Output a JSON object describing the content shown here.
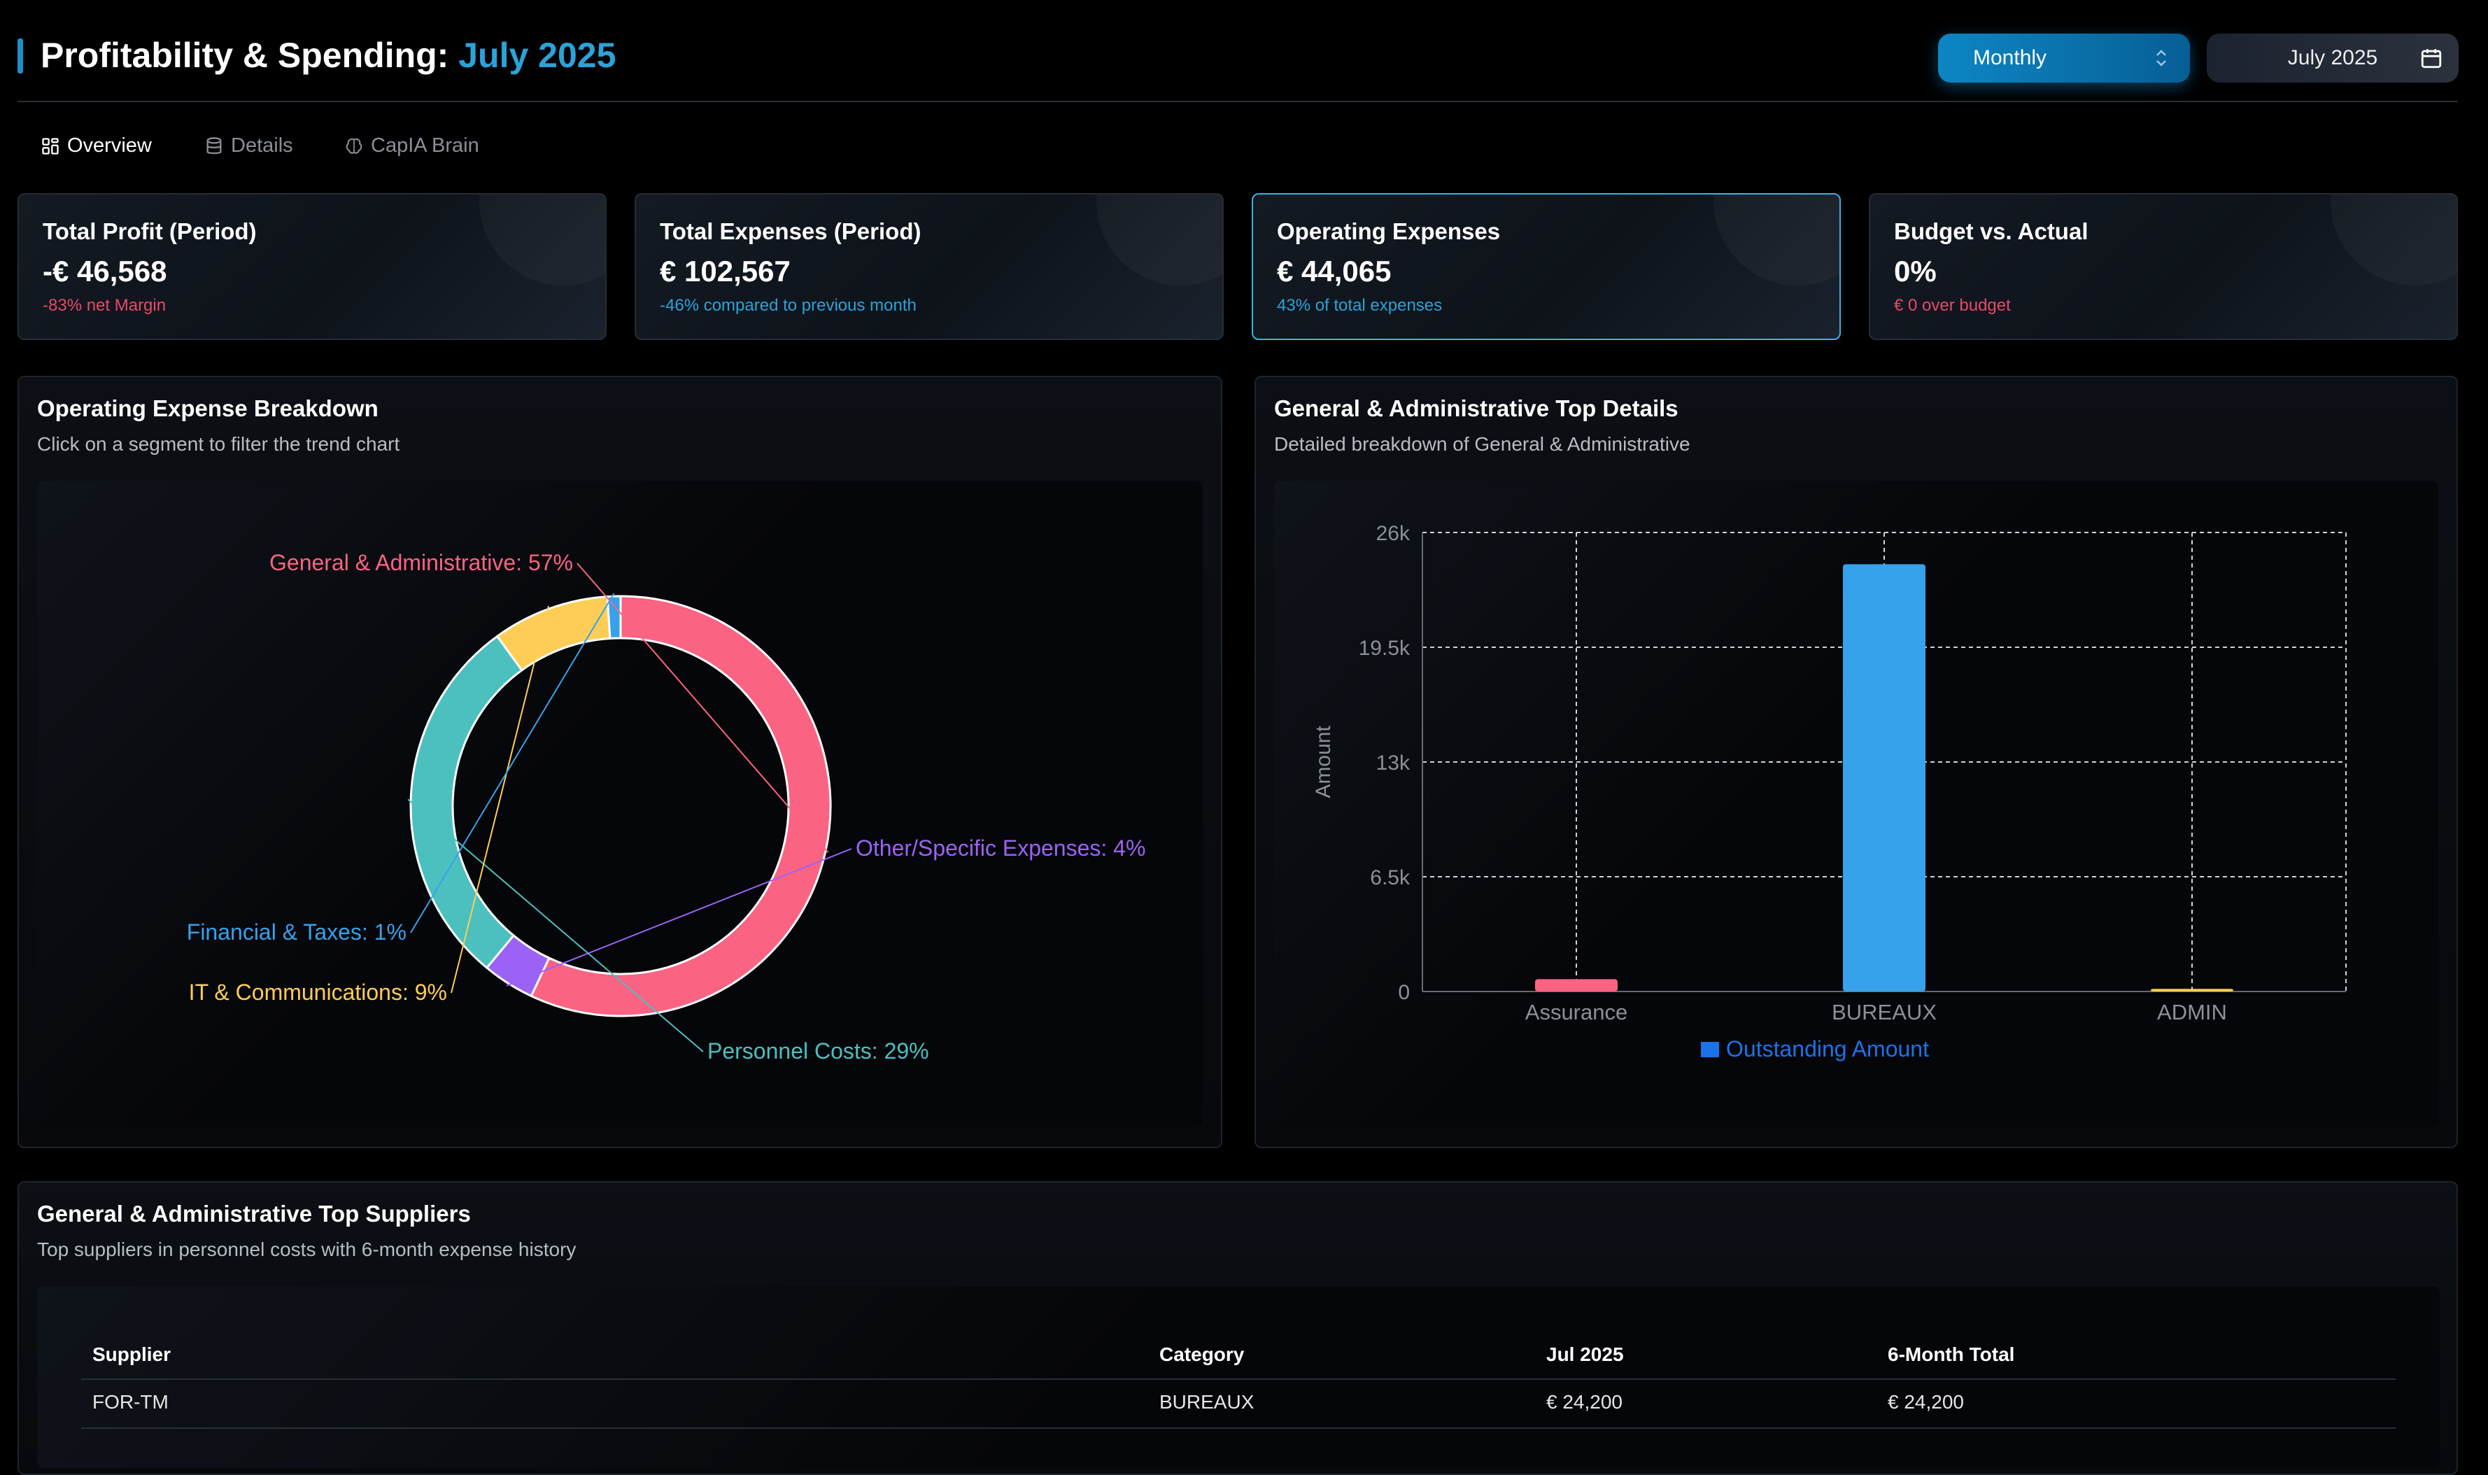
{
  "header": {
    "title_main": "Profitability & Spending:",
    "title_period": "July 2025",
    "period_select": {
      "value": "Monthly"
    },
    "date_picker": {
      "value": "July 2025"
    }
  },
  "tabs": [
    {
      "label": "Overview",
      "icon": "dashboard-icon",
      "active": true
    },
    {
      "label": "Details",
      "icon": "database-icon",
      "active": false
    },
    {
      "label": "CapIA Brain",
      "icon": "brain-icon",
      "active": false
    }
  ],
  "kpis": [
    {
      "label": "Total Profit (Period)",
      "value": "-€ 46,568",
      "sub": "-83% net Margin",
      "sub_color": "#e8496a"
    },
    {
      "label": "Total Expenses (Period)",
      "value": "€ 102,567",
      "sub": "-46% compared to previous month",
      "sub_color": "#2ba3d9"
    },
    {
      "label": "Operating Expenses",
      "value": "€ 44,065",
      "sub": "43% of total expenses",
      "sub_color": "#2ba3d9"
    },
    {
      "label": "Budget vs. Actual",
      "value": "0%",
      "sub": "€ 0 over budget",
      "sub_color": "#e8496a"
    }
  ],
  "donut_panel": {
    "title": "Operating Expense Breakdown",
    "subtitle": "Click on a segment to filter the trend chart"
  },
  "bar_panel": {
    "title": "General & Administrative Top Details",
    "subtitle": "Detailed breakdown of General & Administrative"
  },
  "chart_data": [
    {
      "type": "pie",
      "style": "donut",
      "slices": [
        {
          "label": "General & Administrative: 57%",
          "value": 57,
          "color": "#fb6383"
        },
        {
          "label": "Other/Specific Expenses: 4%",
          "value": 4,
          "color": "#9b63f5"
        },
        {
          "label": "Personnel Costs: 29%",
          "value": 29,
          "color": "#4cc0bf"
        },
        {
          "label": "IT & Communications: 9%",
          "value": 9,
          "color": "#ffcd55"
        },
        {
          "label": "Financial & Taxes: 1%",
          "value": 1,
          "color": "#36a2eb"
        }
      ]
    },
    {
      "type": "bar",
      "categories": [
        "Assurance",
        "BUREAUX",
        "ADMIN"
      ],
      "series": [
        {
          "name": "Outstanding Amount",
          "values": [
            700,
            24200,
            150
          ],
          "colors": [
            "#fb6383",
            "#36a2eb",
            "#ffcd55"
          ]
        }
      ],
      "ylabel": "Amount",
      "ylim": [
        0,
        26000
      ],
      "yticks": [
        0,
        6500,
        13000,
        19500,
        26000
      ],
      "ytick_labels": [
        "0",
        "6.5k",
        "13k",
        "19.5k",
        "26k"
      ],
      "grid": true,
      "legend": "bottom",
      "legend_color": "#1a73e8"
    }
  ],
  "suppliers_panel": {
    "title": "General & Administrative Top Suppliers",
    "subtitle": "Top suppliers in personnel costs with 6-month expense history",
    "columns": [
      "Supplier",
      "Category",
      "Jul 2025",
      "6-Month Total"
    ],
    "rows": [
      [
        "FOR-TM",
        "BUREAUX",
        "€ 24,200",
        "€ 24,200"
      ]
    ]
  }
}
